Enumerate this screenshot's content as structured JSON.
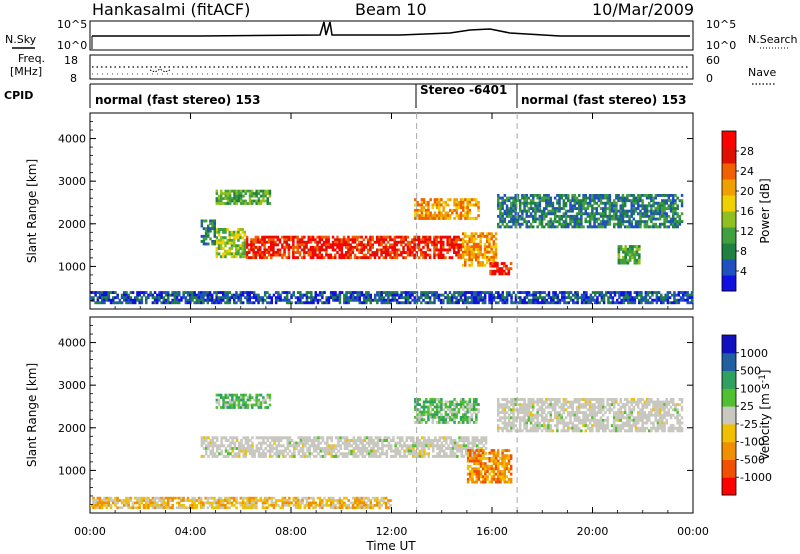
{
  "header": {
    "station": "Hankasalmi (fitACF)",
    "beam": "Beam 10",
    "date": "10/Mar/2009"
  },
  "noise_panel": {
    "left_label": "N.Sky",
    "right_label": "N.Search",
    "left_ticks": [
      "10^5",
      "10^0"
    ],
    "right_ticks": [
      "10^5",
      "10^0"
    ]
  },
  "freq_panel": {
    "left_label_1": "Freq.",
    "left_label_2": "[MHz]",
    "left_ticks": [
      "18",
      "8"
    ],
    "right_label": "Nave",
    "right_ticks": [
      "60",
      "0"
    ]
  },
  "cpid_panel": {
    "label": "CPID",
    "segments": [
      {
        "text": "normal (fast stereo) 153",
        "start_hour": 0
      },
      {
        "text": "Stereo -6401",
        "start_hour": 13
      },
      {
        "text": "normal (fast stereo) 153",
        "start_hour": 17
      }
    ]
  },
  "chart_data": [
    {
      "type": "heatmap",
      "name": "power",
      "ylabel": "Slant Range [km]",
      "xlabel": "",
      "yticks": [
        "1000",
        "2000",
        "3000",
        "4000"
      ],
      "ylim": [
        0,
        4600
      ],
      "xlim": [
        0,
        24
      ],
      "colorbar": {
        "label": "Power [dB]",
        "ticks": [
          "4",
          "8",
          "12",
          "16",
          "20",
          "24",
          "28"
        ],
        "colors": [
          "#1010e0",
          "#2050c0",
          "#208040",
          "#40a040",
          "#90c020",
          "#f0d000",
          "#f0a000",
          "#f06000",
          "#e01000",
          "#ff0000"
        ]
      },
      "markers_hours": [
        13,
        17
      ],
      "regions": [
        {
          "x0": 6.2,
          "x1": 14.8,
          "y0": 1180,
          "y1": 1720,
          "level": 8
        },
        {
          "x0": 5.0,
          "x1": 6.2,
          "y0": 1200,
          "y1": 1900,
          "level": 4
        },
        {
          "x0": 4.4,
          "x1": 5.0,
          "y0": 1500,
          "y1": 2100,
          "level": 2
        },
        {
          "x0": 14.8,
          "x1": 16.2,
          "y0": 1000,
          "y1": 1800,
          "level": 6
        },
        {
          "x0": 15.8,
          "x1": 16.8,
          "y0": 800,
          "y1": 1100,
          "level": 8
        },
        {
          "x0": 12.9,
          "x1": 15.5,
          "y0": 2100,
          "y1": 2600,
          "level": 6
        },
        {
          "x0": 5.0,
          "x1": 7.2,
          "y0": 2450,
          "y1": 2800,
          "level": 3
        },
        {
          "x0": 16.2,
          "x1": 23.6,
          "y0": 1900,
          "y1": 2700,
          "level": 2
        },
        {
          "x0": 21.0,
          "x1": 21.9,
          "y0": 1050,
          "y1": 1500,
          "level": 3
        },
        {
          "x0": 0.0,
          "x1": 24.0,
          "y0": 120,
          "y1": 420,
          "level": 1
        }
      ]
    },
    {
      "type": "heatmap",
      "name": "velocity",
      "ylabel": "Slant Range [km]",
      "xlabel": "Time UT",
      "yticks": [
        "1000",
        "2000",
        "3000",
        "4000"
      ],
      "xticks": [
        "00:00",
        "04:00",
        "08:00",
        "12:00",
        "16:00",
        "20:00",
        "00:00"
      ],
      "ylim": [
        0,
        4600
      ],
      "xlim": [
        0,
        24
      ],
      "colorbar": {
        "label": "Velocity [m s^-1]",
        "ticks": [
          "1000",
          "500",
          "100",
          "25",
          "-25",
          "-100",
          "-500",
          "-1000"
        ],
        "colors": [
          "#1010c0",
          "#2060a0",
          "#30a060",
          "#50c030",
          "#c8c8c0",
          "#f0c000",
          "#f09000",
          "#f05000",
          "#ff0000"
        ]
      },
      "markers_hours": [
        13,
        17
      ],
      "regions": [
        {
          "x0": 4.4,
          "x1": 15.8,
          "y0": 1300,
          "y1": 1800,
          "level": 4
        },
        {
          "x0": 12.9,
          "x1": 15.5,
          "y0": 2100,
          "y1": 2700,
          "level": 3
        },
        {
          "x0": 5.0,
          "x1": 7.2,
          "y0": 2450,
          "y1": 2800,
          "level": 3
        },
        {
          "x0": 15.0,
          "x1": 16.8,
          "y0": 700,
          "y1": 1500,
          "level": 6
        },
        {
          "x0": 16.2,
          "x1": 23.6,
          "y0": 1900,
          "y1": 2700,
          "level": 4
        },
        {
          "x0": 0.0,
          "x1": 12.0,
          "y0": 100,
          "y1": 380,
          "level": 5
        }
      ]
    }
  ]
}
